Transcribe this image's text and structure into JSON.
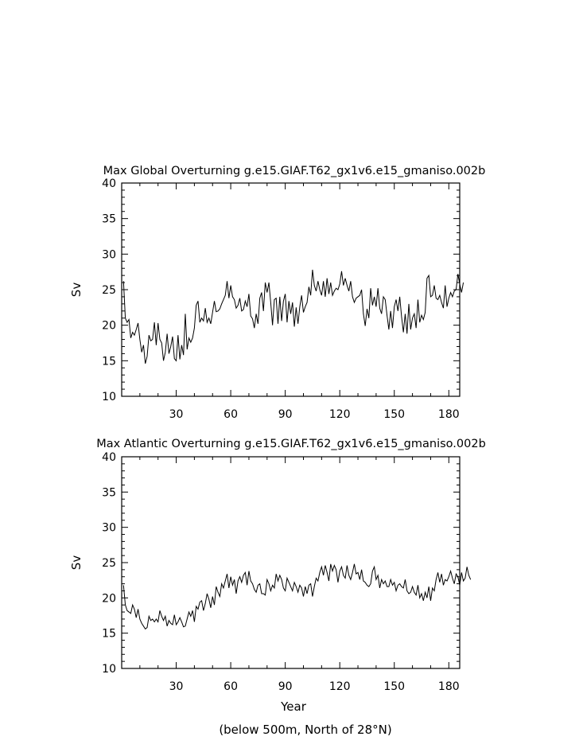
{
  "footnote": "(below 500m, North of 28°N)",
  "chart_data": [
    {
      "type": "line",
      "title": "Max Global Overturning g.e15.GIAF.T62_gx1v6.e15_gmaniso.002b",
      "xlabel": "",
      "ylabel": "Sv",
      "xlim": [
        0,
        186
      ],
      "ylim": [
        10,
        40
      ],
      "xticks": [
        "30",
        "60",
        "90",
        "120",
        "150",
        "180"
      ],
      "yticks": [
        "10",
        "15",
        "20",
        "25",
        "30",
        "35",
        "40"
      ],
      "grid": false,
      "x_start": 1,
      "values": [
        26.2,
        21.0,
        20.4,
        20.8,
        18.2,
        19.0,
        18.6,
        19.4,
        20.3,
        18.0,
        16.2,
        17.2,
        14.6,
        15.6,
        18.6,
        17.8,
        18.0,
        20.4,
        17.2,
        20.3,
        18.0,
        17.5,
        15.0,
        16.2,
        18.8,
        16.0,
        17.0,
        18.4,
        15.3,
        15.0,
        18.6,
        15.2,
        17.2,
        15.8,
        21.6,
        16.6,
        18.2,
        17.6,
        18.2,
        19.6,
        22.8,
        23.4,
        20.4,
        21.0,
        20.6,
        22.4,
        20.4,
        21.0,
        20.2,
        21.8,
        23.4,
        21.9,
        22.0,
        22.3,
        23.0,
        23.6,
        24.2,
        26.2,
        23.8,
        25.6,
        24.0,
        23.6,
        22.4,
        22.8,
        23.8,
        22.0,
        22.2,
        23.4,
        22.6,
        24.4,
        21.3,
        20.9,
        19.6,
        21.6,
        20.2,
        23.8,
        24.6,
        22.0,
        26.0,
        24.6,
        26.0,
        23.2,
        20.0,
        23.6,
        23.8,
        20.2,
        24.0,
        20.6,
        23.4,
        24.4,
        20.4,
        23.4,
        21.6,
        23.2,
        19.8,
        22.5,
        20.2,
        22.6,
        24.2,
        21.8,
        22.6,
        23.2,
        25.4,
        24.2,
        27.8,
        25.6,
        24.8,
        26.2,
        25.0,
        24.2,
        26.2,
        24.0,
        26.6,
        24.4,
        26.0,
        24.2,
        24.8,
        25.2,
        25.0,
        25.8,
        27.6,
        25.6,
        26.6,
        25.6,
        24.8,
        26.2,
        24.0,
        23.2,
        23.8,
        24.0,
        24.2,
        25.0,
        21.6,
        19.9,
        22.3,
        21.0,
        25.2,
        22.8,
        24.0,
        22.6,
        25.2,
        22.4,
        21.6,
        24.0,
        23.6,
        21.4,
        19.4,
        22.0,
        19.6,
        22.6,
        23.6,
        22.0,
        24.0,
        21.2,
        19.0,
        21.6,
        18.8,
        23.0,
        19.4,
        21.0,
        21.6,
        19.6,
        23.6,
        20.4,
        21.4,
        20.8,
        21.8,
        26.6,
        27.0,
        24.0,
        24.2,
        25.6,
        23.8,
        23.6,
        24.2,
        23.2,
        22.4,
        25.6,
        22.6,
        23.8,
        24.6,
        24.0,
        24.8,
        25.0,
        27.2,
        25.8,
        24.6,
        26.0
      ]
    },
    {
      "type": "line",
      "title": "Max Atlantic Overturning g.e15.GIAF.T62_gx1v6.e15_gmaniso.002b",
      "xlabel": "Year",
      "ylabel": "Sv",
      "xlim": [
        0,
        186
      ],
      "ylim": [
        10,
        40
      ],
      "xticks": [
        "30",
        "60",
        "90",
        "120",
        "150",
        "180"
      ],
      "yticks": [
        "10",
        "15",
        "20",
        "25",
        "30",
        "35",
        "40"
      ],
      "grid": false,
      "x_start": 1,
      "values": [
        21.8,
        19.0,
        18.2,
        18.0,
        17.8,
        19.0,
        18.4,
        17.2,
        18.4,
        17.0,
        16.4,
        16.0,
        15.6,
        15.8,
        17.4,
        16.8,
        17.0,
        16.6,
        17.0,
        16.6,
        18.2,
        17.4,
        16.8,
        17.4,
        16.0,
        16.8,
        16.4,
        16.2,
        17.6,
        16.2,
        16.6,
        17.2,
        16.6,
        15.9,
        16.0,
        17.0,
        18.0,
        17.4,
        18.2,
        16.6,
        18.8,
        18.4,
        19.4,
        19.6,
        18.2,
        19.2,
        20.6,
        19.8,
        18.6,
        20.2,
        19.0,
        21.6,
        20.8,
        20.2,
        22.0,
        21.4,
        22.4,
        23.4,
        21.4,
        23.0,
        21.8,
        22.6,
        20.6,
        22.4,
        23.0,
        22.2,
        23.2,
        23.6,
        21.8,
        23.8,
        22.4,
        22.0,
        21.2,
        20.8,
        21.8,
        22.0,
        20.6,
        20.6,
        20.4,
        22.6,
        22.0,
        21.0,
        21.8,
        21.4,
        23.4,
        22.4,
        23.2,
        22.6,
        21.4,
        21.0,
        22.8,
        22.2,
        21.6,
        21.0,
        22.2,
        21.6,
        20.8,
        21.8,
        21.4,
        20.2,
        21.6,
        20.6,
        21.8,
        22.0,
        20.2,
        21.6,
        22.8,
        22.4,
        23.6,
        24.4,
        23.2,
        24.6,
        23.6,
        22.4,
        24.8,
        23.8,
        24.6,
        24.0,
        22.2,
        23.8,
        24.4,
        23.2,
        22.8,
        24.6,
        23.2,
        22.6,
        23.6,
        24.8,
        23.4,
        23.6,
        22.6,
        24.0,
        22.4,
        22.2,
        21.8,
        21.6,
        22.0,
        23.8,
        24.4,
        22.6,
        23.2,
        21.4,
        22.6,
        22.0,
        22.4,
        21.6,
        21.6,
        22.6,
        21.8,
        22.2,
        21.0,
        21.8,
        22.0,
        21.6,
        21.4,
        22.6,
        21.0,
        20.6,
        20.8,
        21.6,
        20.8,
        20.4,
        21.8,
        20.0,
        20.6,
        19.6,
        20.8,
        20.0,
        21.6,
        19.6,
        21.4,
        21.0,
        22.6,
        23.6,
        22.2,
        23.4,
        21.8,
        22.6,
        22.4,
        23.0,
        23.8,
        22.8,
        22.0,
        23.4,
        23.0,
        21.8,
        23.6,
        22.4,
        22.8,
        24.4,
        23.2,
        22.6
      ]
    }
  ]
}
